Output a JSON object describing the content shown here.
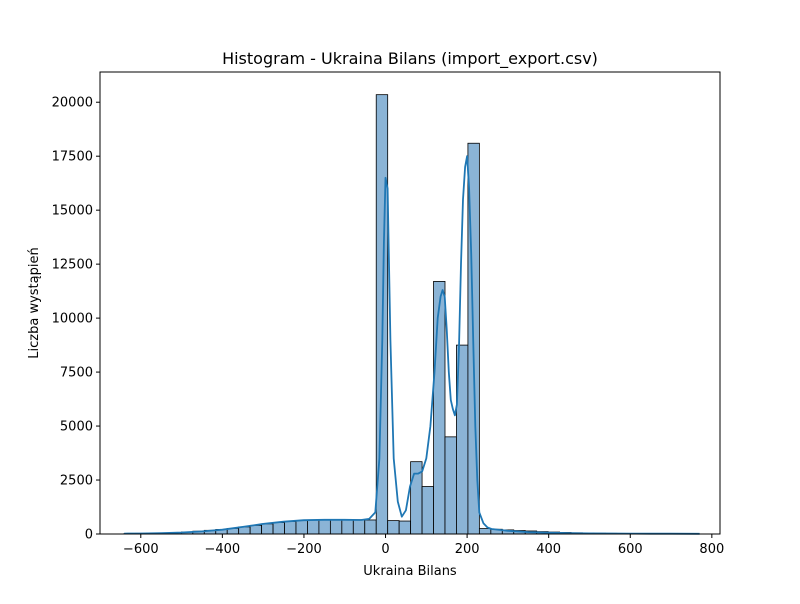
{
  "chart_data": {
    "type": "bar",
    "title": "Histogram - Ukraina Bilans (import_export.csv)",
    "xlabel": "Ukraina Bilans",
    "ylabel": "Liczba wystąpień",
    "xlim": [
      -700,
      820
    ],
    "ylim": [
      0,
      21400
    ],
    "xticks": [
      -600,
      -400,
      -200,
      0,
      200,
      400,
      600,
      800
    ],
    "xtick_labels": [
      "−600",
      "−400",
      "−200",
      "0",
      "200",
      "400",
      "600",
      "800"
    ],
    "yticks": [
      0,
      2500,
      5000,
      7500,
      10000,
      12500,
      15000,
      17500,
      20000
    ],
    "ytick_labels": [
      "0",
      "2500",
      "5000",
      "7500",
      "10000",
      "12500",
      "15000",
      "17500",
      "20000"
    ],
    "bin_width": 28.1,
    "bin_edges": [
      -641,
      -612.9,
      -584.8,
      -556.7,
      -528.6,
      -500.5,
      -472.4,
      -444.3,
      -416.2,
      -388.1,
      -360,
      -331.9,
      -303.8,
      -275.7,
      -247.6,
      -219.5,
      -191.4,
      -163.3,
      -135.2,
      -107.1,
      -79,
      -50.9,
      -22.8,
      5.3,
      33.4,
      61.5,
      89.6,
      117.7,
      145.8,
      173.9,
      202,
      230.1,
      258.2,
      286.3,
      314.4,
      342.5,
      370.6,
      398.7,
      426.8,
      454.9,
      483,
      511.1,
      539.2,
      567.3,
      595.4,
      623.5,
      651.6,
      679.7,
      707.8,
      735.9,
      764,
      792.1
    ],
    "counts": [
      20,
      30,
      40,
      50,
      70,
      90,
      130,
      170,
      210,
      260,
      330,
      400,
      470,
      530,
      580,
      620,
      650,
      660,
      660,
      660,
      660,
      650,
      20350,
      620,
      600,
      3350,
      2200,
      11700,
      4500,
      8750,
      18100,
      250,
      220,
      190,
      160,
      140,
      110,
      90,
      70,
      55,
      45,
      35,
      30,
      25,
      20,
      15,
      12,
      10,
      8,
      6,
      4
    ],
    "kde": {
      "x": [
        -641,
        -600,
        -550,
        -500,
        -450,
        -400,
        -350,
        -300,
        -250,
        -200,
        -150,
        -100,
        -60,
        -40,
        -25,
        -15,
        -8,
        -4,
        0,
        5,
        12,
        20,
        30,
        40,
        50,
        60,
        70,
        80,
        90,
        100,
        110,
        120,
        128,
        135,
        140,
        145,
        150,
        155,
        160,
        165,
        170,
        175,
        180,
        185,
        190,
        195,
        200,
        205,
        210,
        215,
        220,
        225,
        230,
        240,
        250,
        260,
        280,
        300,
        350,
        400,
        450,
        500,
        550,
        600,
        650,
        700,
        770
      ],
      "y": [
        20,
        25,
        40,
        70,
        120,
        200,
        330,
        470,
        570,
        640,
        660,
        660,
        650,
        700,
        1000,
        3500,
        9000,
        13500,
        16500,
        16000,
        9000,
        3500,
        1500,
        800,
        1100,
        2200,
        2800,
        2800,
        2900,
        3500,
        5000,
        7500,
        10000,
        11000,
        11300,
        11000,
        9500,
        7500,
        6200,
        5800,
        5500,
        6000,
        8500,
        12500,
        15500,
        17000,
        17500,
        16000,
        13000,
        9000,
        5000,
        2500,
        1000,
        500,
        300,
        230,
        190,
        150,
        90,
        60,
        40,
        30,
        25,
        20,
        15,
        12,
        10
      ]
    },
    "colors": {
      "bar_fill": "#8bb4d6",
      "bar_edge": "#000000",
      "kde_line": "#1f77b4"
    },
    "grid": false,
    "legend": "none"
  }
}
